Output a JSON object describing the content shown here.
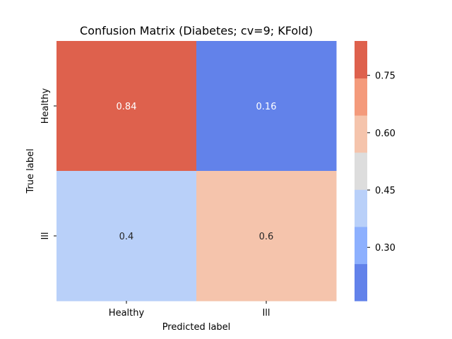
{
  "chart_data": {
    "type": "heatmap",
    "title": "Confusion Matrix (Diabetes; cv=9; KFold)",
    "xlabel": "Predicted label",
    "ylabel": "True label",
    "x_categories": [
      "Healthy",
      "Ill"
    ],
    "y_categories": [
      "Healthy",
      "Ill"
    ],
    "values": [
      [
        0.84,
        0.16
      ],
      [
        0.4,
        0.6
      ]
    ],
    "cell_labels": [
      [
        "0.84",
        "0.16"
      ],
      [
        "0.4",
        "0.6"
      ]
    ],
    "colorbar": {
      "range": [
        0.16,
        0.84
      ],
      "ticks": [
        0.3,
        0.45,
        0.6,
        0.75
      ],
      "tick_labels": [
        "0.30",
        "0.45",
        "0.60",
        "0.75"
      ],
      "colors": [
        "#6282ea",
        "#8db0fe",
        "#b9d0f9",
        "#dddddd",
        "#f5c4ac",
        "#f49a7b",
        "#de614d"
      ]
    }
  }
}
